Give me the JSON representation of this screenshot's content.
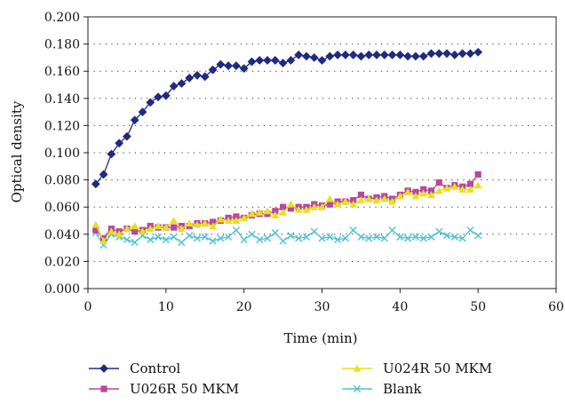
{
  "chart_data": {
    "type": "line",
    "xlabel": "Time (min)",
    "ylabel": "Optical density",
    "xlim": [
      0,
      60
    ],
    "ylim": [
      0,
      0.2
    ],
    "xticks": [
      0,
      10,
      20,
      30,
      40,
      50,
      60
    ],
    "yticks": [
      0.0,
      0.02,
      0.04,
      0.06,
      0.08,
      0.1,
      0.12,
      0.14,
      0.16,
      0.18,
      0.2
    ],
    "xtick_labels": [
      "0",
      "10",
      "20",
      "30",
      "40",
      "50",
      "60"
    ],
    "ytick_labels": [
      "0.000",
      "0.020",
      "0.040",
      "0.060",
      "0.080",
      "0.100",
      "0.120",
      "0.140",
      "0.160",
      "0.180",
      "0.200"
    ],
    "grid": "horizontal dotted",
    "legend_position": "bottom",
    "series": [
      {
        "name": "Control",
        "color": "#1f2a80",
        "marker": "diamond",
        "x": [
          1,
          2,
          3,
          4,
          5,
          6,
          7,
          8,
          9,
          10,
          11,
          12,
          13,
          14,
          15,
          16,
          17,
          18,
          19,
          20,
          21,
          22,
          23,
          24,
          25,
          26,
          27,
          28,
          29,
          30,
          31,
          32,
          33,
          34,
          35,
          36,
          37,
          38,
          39,
          40,
          41,
          42,
          43,
          44,
          45,
          46,
          47,
          48,
          49,
          50
        ],
        "y": [
          0.077,
          0.084,
          0.099,
          0.107,
          0.112,
          0.124,
          0.13,
          0.137,
          0.141,
          0.142,
          0.149,
          0.151,
          0.155,
          0.157,
          0.156,
          0.161,
          0.165,
          0.164,
          0.164,
          0.162,
          0.167,
          0.168,
          0.168,
          0.168,
          0.166,
          0.168,
          0.172,
          0.171,
          0.17,
          0.168,
          0.171,
          0.172,
          0.172,
          0.172,
          0.171,
          0.172,
          0.172,
          0.172,
          0.172,
          0.172,
          0.171,
          0.171,
          0.171,
          0.173,
          0.173,
          0.173,
          0.172,
          0.173,
          0.173,
          0.174
        ]
      },
      {
        "name": "U024R 50 MKM",
        "color": "#e8e01c",
        "marker": "triangle",
        "x": [
          1,
          2,
          3,
          4,
          5,
          6,
          7,
          8,
          9,
          10,
          11,
          12,
          13,
          14,
          15,
          16,
          17,
          18,
          19,
          20,
          21,
          22,
          23,
          24,
          25,
          26,
          27,
          28,
          29,
          30,
          31,
          32,
          33,
          34,
          35,
          36,
          37,
          38,
          39,
          40,
          41,
          42,
          43,
          44,
          45,
          46,
          47,
          48,
          49,
          50
        ],
        "y": [
          0.047,
          0.035,
          0.042,
          0.04,
          0.044,
          0.046,
          0.042,
          0.044,
          0.046,
          0.045,
          0.05,
          0.044,
          0.048,
          0.047,
          0.048,
          0.046,
          0.051,
          0.05,
          0.05,
          0.052,
          0.055,
          0.056,
          0.057,
          0.054,
          0.056,
          0.062,
          0.058,
          0.058,
          0.06,
          0.06,
          0.066,
          0.062,
          0.064,
          0.062,
          0.065,
          0.066,
          0.065,
          0.066,
          0.064,
          0.068,
          0.071,
          0.068,
          0.07,
          0.069,
          0.072,
          0.074,
          0.075,
          0.073,
          0.073,
          0.076
        ]
      },
      {
        "name": "U026R 50 MKM",
        "color": "#b8479e",
        "marker": "square",
        "x": [
          1,
          2,
          3,
          4,
          5,
          6,
          7,
          8,
          9,
          10,
          11,
          12,
          13,
          14,
          15,
          16,
          17,
          18,
          19,
          20,
          21,
          22,
          23,
          24,
          25,
          26,
          27,
          28,
          29,
          30,
          31,
          32,
          33,
          34,
          35,
          36,
          37,
          38,
          39,
          40,
          41,
          42,
          43,
          44,
          45,
          46,
          47,
          48,
          49,
          50
        ],
        "y": [
          0.043,
          0.037,
          0.044,
          0.042,
          0.044,
          0.042,
          0.043,
          0.046,
          0.045,
          0.045,
          0.045,
          0.046,
          0.046,
          0.048,
          0.048,
          0.049,
          0.05,
          0.052,
          0.053,
          0.052,
          0.054,
          0.055,
          0.055,
          0.057,
          0.06,
          0.059,
          0.06,
          0.06,
          0.062,
          0.061,
          0.062,
          0.064,
          0.064,
          0.065,
          0.069,
          0.066,
          0.067,
          0.068,
          0.066,
          0.069,
          0.072,
          0.071,
          0.073,
          0.072,
          0.078,
          0.074,
          0.076,
          0.075,
          0.077,
          0.084
        ]
      },
      {
        "name": "Blank",
        "color": "#4fc3d0",
        "marker": "x",
        "x": [
          1,
          2,
          3,
          4,
          5,
          6,
          7,
          8,
          9,
          10,
          11,
          12,
          13,
          14,
          15,
          16,
          17,
          18,
          19,
          20,
          21,
          22,
          23,
          24,
          25,
          26,
          27,
          28,
          29,
          30,
          31,
          32,
          33,
          34,
          35,
          36,
          37,
          38,
          39,
          40,
          41,
          42,
          43,
          44,
          45,
          46,
          47,
          48,
          49,
          50
        ],
        "y": [
          0.041,
          0.032,
          0.04,
          0.038,
          0.036,
          0.034,
          0.039,
          0.036,
          0.038,
          0.036,
          0.038,
          0.034,
          0.039,
          0.037,
          0.038,
          0.035,
          0.037,
          0.038,
          0.043,
          0.036,
          0.04,
          0.036,
          0.037,
          0.041,
          0.035,
          0.039,
          0.037,
          0.038,
          0.042,
          0.037,
          0.038,
          0.036,
          0.037,
          0.043,
          0.038,
          0.037,
          0.038,
          0.037,
          0.043,
          0.038,
          0.037,
          0.038,
          0.037,
          0.038,
          0.042,
          0.039,
          0.038,
          0.037,
          0.043,
          0.039
        ]
      }
    ],
    "legend": [
      {
        "label": "Control",
        "series": 0
      },
      {
        "label": "U024R 50 MKM",
        "series": 1
      },
      {
        "label": "U026R 50 MKM",
        "series": 2
      },
      {
        "label": "Blank",
        "series": 3
      }
    ]
  }
}
